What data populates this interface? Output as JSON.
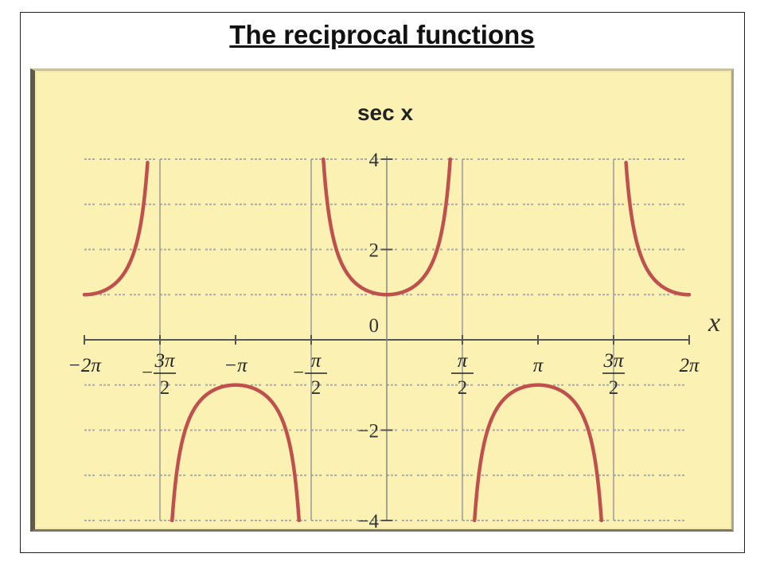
{
  "slide": {
    "title": "The reciprocal functions"
  },
  "chart_data": {
    "type": "line",
    "title": "sec x",
    "xlabel": "x",
    "ylabel": "",
    "function": "sec",
    "xlim": [
      -6.283185,
      6.283185
    ],
    "ylim": [
      -4,
      4
    ],
    "grid": true,
    "x_ticks": [
      {
        "value": -6.283185,
        "label": "−2π"
      },
      {
        "value": -4.712389,
        "label_num": "3π",
        "label_den": "2",
        "sign": "−"
      },
      {
        "value": -3.141593,
        "label": "−π"
      },
      {
        "value": -1.570796,
        "label_num": "π",
        "label_den": "2",
        "sign": "−"
      },
      {
        "value": 1.570796,
        "label_num": "π",
        "label_den": "2",
        "sign": ""
      },
      {
        "value": 3.141593,
        "label": "π"
      },
      {
        "value": 4.712389,
        "label_num": "3π",
        "label_den": "2",
        "sign": ""
      },
      {
        "value": 6.283185,
        "label": "2π"
      }
    ],
    "y_ticks": [
      {
        "value": 4,
        "label": "4"
      },
      {
        "value": 2,
        "label": "2"
      },
      {
        "value": 0,
        "label": "0"
      },
      {
        "value": -2,
        "label": "−2"
      },
      {
        "value": -4,
        "label": "−4"
      }
    ],
    "asymptotes": [
      -4.712389,
      -1.570796,
      1.570796,
      4.712389
    ],
    "series": [
      {
        "x": [
          -6.283185,
          -6.0,
          -5.5,
          -5.2,
          -5.0,
          -4.97
        ],
        "y": [
          1.0,
          1.04,
          1.41,
          2.13,
          3.53,
          4.0
        ]
      },
      {
        "x": [
          -4.46,
          -4.2,
          -3.8,
          -3.141593,
          -2.5,
          -2.1,
          -1.823
        ],
        "y": [
          -4.0,
          -2.04,
          -1.27,
          -1.0,
          -1.25,
          -1.98,
          -4.0
        ]
      },
      {
        "x": [
          -1.318,
          -1.0,
          -0.5,
          0.0,
          0.5,
          1.0,
          1.318
        ],
        "y": [
          4.0,
          1.85,
          1.14,
          1.0,
          1.14,
          1.85,
          4.0
        ]
      },
      {
        "x": [
          1.823,
          2.1,
          2.5,
          3.141593,
          3.8,
          4.2,
          4.46
        ],
        "y": [
          -4.0,
          -1.98,
          -1.25,
          -1.0,
          -1.27,
          -2.04,
          -4.0
        ]
      },
      {
        "x": [
          4.97,
          5.0,
          5.2,
          5.5,
          6.0,
          6.283185
        ],
        "y": [
          4.0,
          3.53,
          2.13,
          1.41,
          1.04,
          1.0
        ]
      }
    ],
    "colors": {
      "curve": "#c0504d",
      "background": "#faf1b3",
      "axis": "#555555",
      "grid": "#aaaaaa"
    }
  }
}
